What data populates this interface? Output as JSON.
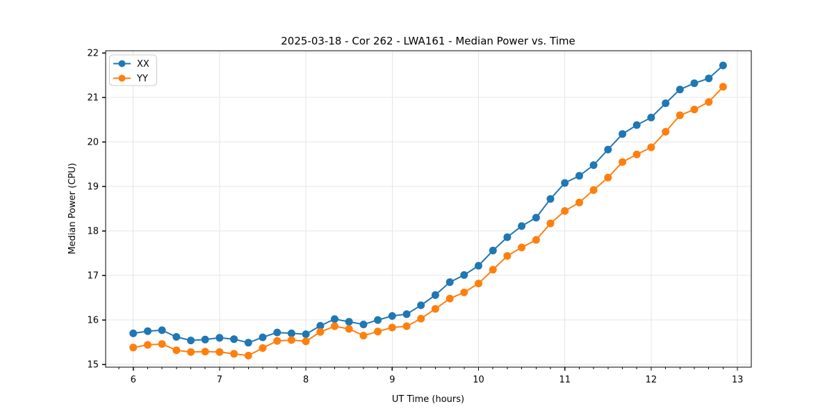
{
  "figure": {
    "background": "#ffffff",
    "spine_color": "#000000",
    "text_color": "#000000"
  },
  "chart_data": {
    "type": "line",
    "title": "2025-03-18 - Cor 262 - LWA161 - Median Power vs. Time",
    "xlabel": "UT Time (hours)",
    "ylabel": "Median Power (CPU)",
    "xlim": [
      5.68,
      13.16
    ],
    "ylim": [
      14.94,
      22.05
    ],
    "x_ticks": [
      6,
      7,
      8,
      9,
      10,
      11,
      12,
      13
    ],
    "y_ticks": [
      15,
      16,
      17,
      18,
      19,
      20,
      21,
      22
    ],
    "x_minor_tick_step": 0.16667,
    "grid": true,
    "grid_color": "#e5e5e5",
    "legend_position": "upper-left",
    "x": [
      6.0,
      6.167,
      6.333,
      6.5,
      6.667,
      6.833,
      7.0,
      7.167,
      7.333,
      7.5,
      7.667,
      7.833,
      8.0,
      8.167,
      8.333,
      8.5,
      8.667,
      8.833,
      9.0,
      9.167,
      9.333,
      9.5,
      9.667,
      9.833,
      10.0,
      10.167,
      10.333,
      10.5,
      10.667,
      10.833,
      11.0,
      11.167,
      11.333,
      11.5,
      11.667,
      11.833,
      12.0,
      12.167,
      12.333,
      12.5,
      12.667,
      12.833
    ],
    "series": [
      {
        "name": "XX",
        "color": "#1f77b4",
        "values": [
          15.7,
          15.75,
          15.77,
          15.62,
          15.54,
          15.56,
          15.6,
          15.57,
          15.49,
          15.61,
          15.72,
          15.7,
          15.68,
          15.87,
          16.02,
          15.96,
          15.9,
          16.0,
          16.09,
          16.13,
          16.33,
          16.56,
          16.85,
          17.01,
          17.22,
          17.56,
          17.86,
          18.11,
          18.3,
          18.72,
          19.08,
          19.24,
          19.48,
          19.83,
          20.18,
          20.38,
          20.55,
          20.87,
          21.18,
          21.32,
          21.43,
          21.72
        ]
      },
      {
        "name": "YY",
        "color": "#ff7f0e",
        "values": [
          15.38,
          15.44,
          15.46,
          15.32,
          15.28,
          15.29,
          15.28,
          15.24,
          15.2,
          15.37,
          15.53,
          15.55,
          15.52,
          15.73,
          15.86,
          15.8,
          15.65,
          15.74,
          15.83,
          15.86,
          16.03,
          16.25,
          16.48,
          16.62,
          16.82,
          17.13,
          17.44,
          17.63,
          17.8,
          18.17,
          18.45,
          18.64,
          18.92,
          19.2,
          19.55,
          19.72,
          19.88,
          20.23,
          20.6,
          20.73,
          20.9,
          21.24
        ]
      }
    ]
  }
}
